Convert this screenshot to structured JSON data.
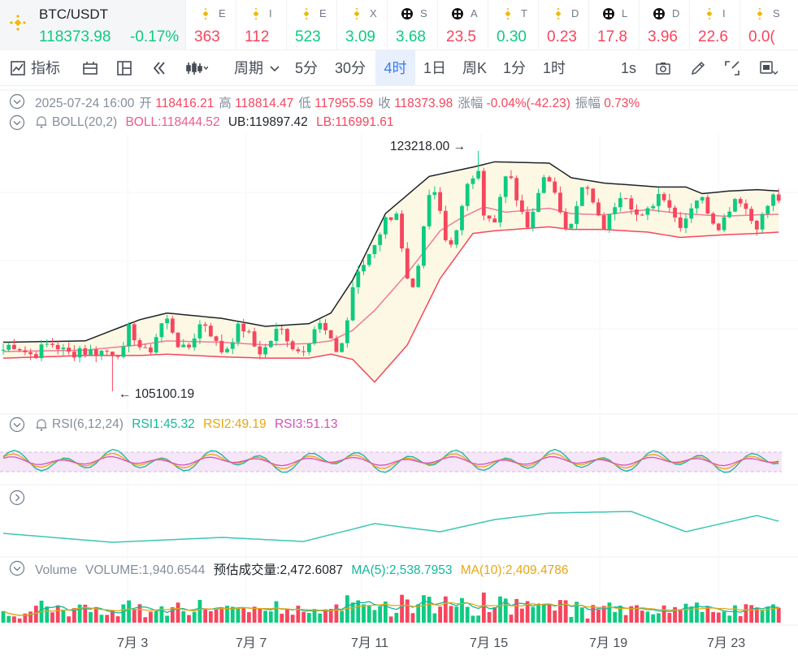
{
  "ticker": {
    "main": {
      "symbol": "BTC/USDT",
      "price": "118373.98",
      "change": "-0.17%"
    },
    "items": [
      {
        "name": "E",
        "value": "363",
        "color": "#f6465d",
        "icon": "bnb-icon"
      },
      {
        "name": "I",
        "value": "112",
        "color": "#f6465d",
        "icon": "bnb-icon"
      },
      {
        "name": "E",
        "value": "523",
        "color": "#0ecb81",
        "icon": "bnb-icon"
      },
      {
        "name": "X",
        "value": "3.09",
        "color": "#0ecb81",
        "icon": "bnb-icon"
      },
      {
        "name": "S",
        "value": "3.68",
        "color": "#0ecb81",
        "icon": "chain-icon"
      },
      {
        "name": "A",
        "value": "23.5",
        "color": "#f6465d",
        "icon": "chain-icon"
      },
      {
        "name": "T",
        "value": "0.30",
        "color": "#0ecb81",
        "icon": "bnb-icon"
      },
      {
        "name": "D",
        "value": "0.23",
        "color": "#f6465d",
        "icon": "bnb-icon"
      },
      {
        "name": "L",
        "value": "17.8",
        "color": "#f6465d",
        "icon": "chain-icon"
      },
      {
        "name": "D",
        "value": "3.96",
        "color": "#f6465d",
        "icon": "chain-icon"
      },
      {
        "name": "I",
        "value": "22.6",
        "color": "#f6465d",
        "icon": "bnb-icon"
      },
      {
        "name": "S",
        "value": "0.0(",
        "color": "#f6465d",
        "icon": "bnb-icon"
      }
    ]
  },
  "toolbar": {
    "indicators": "指标",
    "period": "周期",
    "intervals": [
      "5分",
      "30分",
      "4时",
      "1日",
      "周K",
      "1分",
      "1时"
    ],
    "active_interval": "4时",
    "refresh": "1s"
  },
  "ohlc": {
    "datetime": "2025-07-24 16:00",
    "open_label": "开",
    "open": "118416.21",
    "high_label": "高",
    "high": "118814.47",
    "low_label": "低",
    "low": "117955.59",
    "close_label": "收",
    "close": "118373.98",
    "change_label": "涨幅",
    "change": "-0.04%(-42.23)",
    "amp_label": "振幅",
    "amp": "0.73%"
  },
  "boll": {
    "name": "BOLL(20,2)",
    "mid": "BOLL:118444.52",
    "ub": "UB:119897.42",
    "lb": "LB:116991.61",
    "max_label": "123218.00",
    "min_label": "105100.19"
  },
  "rsi": {
    "name": "RSI(6,12,24)",
    "rsi1": "RSI1:45.32",
    "rsi2": "RSI2:49.19",
    "rsi3": "RSI3:51.13"
  },
  "volume": {
    "name": "Volume",
    "vol": "VOLUME:1,940.6544",
    "est": "预估成交量:2,472.6087",
    "ma5": "MA(5):2,538.7953",
    "ma10": "MA(10):2,409.4786"
  },
  "x_axis": [
    "7月 3",
    "7月 7",
    "7月 11",
    "7月 15",
    "7月 19",
    "7月 23"
  ],
  "colors": {
    "up": "#0ecb81",
    "down": "#f6465d",
    "boll_mid": "#f17a9a",
    "boll_band": "#fdf8e4",
    "rsi1": "#14b89c",
    "rsi2": "#e8a713",
    "rsi3": "#d84fbd"
  },
  "chart_data": {
    "type": "candlestick",
    "price_range": [
      104000,
      124500
    ],
    "boll_upper": [
      [
        0,
        108800
      ],
      [
        15,
        108900
      ],
      [
        25,
        110500
      ],
      [
        30,
        111000
      ],
      [
        40,
        110600
      ],
      [
        48,
        110000
      ],
      [
        56,
        110200
      ],
      [
        60,
        111000
      ],
      [
        64,
        113500
      ],
      [
        70,
        118500
      ],
      [
        78,
        121300
      ],
      [
        86,
        122000
      ],
      [
        90,
        122400
      ],
      [
        100,
        122300
      ],
      [
        104,
        121200
      ],
      [
        110,
        120800
      ],
      [
        120,
        120500
      ],
      [
        125,
        120500
      ],
      [
        128,
        120000
      ],
      [
        133,
        120200
      ],
      [
        138,
        120300
      ],
      [
        142,
        120200
      ]
    ],
    "boll_lower": [
      [
        0,
        107600
      ],
      [
        15,
        107800
      ],
      [
        25,
        107800
      ],
      [
        30,
        107900
      ],
      [
        40,
        107700
      ],
      [
        48,
        107600
      ],
      [
        56,
        107600
      ],
      [
        60,
        107900
      ],
      [
        64,
        107500
      ],
      [
        68,
        105800
      ],
      [
        74,
        108600
      ],
      [
        80,
        113600
      ],
      [
        86,
        117000
      ],
      [
        90,
        117200
      ],
      [
        100,
        117500
      ],
      [
        104,
        117300
      ],
      [
        110,
        117300
      ],
      [
        118,
        117100
      ],
      [
        124,
        116700
      ],
      [
        132,
        116900
      ],
      [
        138,
        117000
      ],
      [
        142,
        117100
      ]
    ],
    "boll_mid": [
      [
        0,
        108100
      ],
      [
        15,
        108200
      ],
      [
        25,
        108600
      ],
      [
        30,
        108900
      ],
      [
        40,
        108800
      ],
      [
        48,
        108600
      ],
      [
        56,
        108700
      ],
      [
        60,
        108900
      ],
      [
        64,
        109700
      ],
      [
        68,
        111200
      ],
      [
        74,
        114000
      ],
      [
        80,
        117200
      ],
      [
        84,
        118200
      ],
      [
        88,
        119000
      ],
      [
        92,
        118600
      ],
      [
        100,
        118900
      ],
      [
        104,
        118500
      ],
      [
        110,
        118400
      ],
      [
        118,
        118800
      ],
      [
        124,
        118500
      ],
      [
        132,
        118300
      ],
      [
        138,
        118400
      ],
      [
        142,
        118450
      ]
    ]
  }
}
